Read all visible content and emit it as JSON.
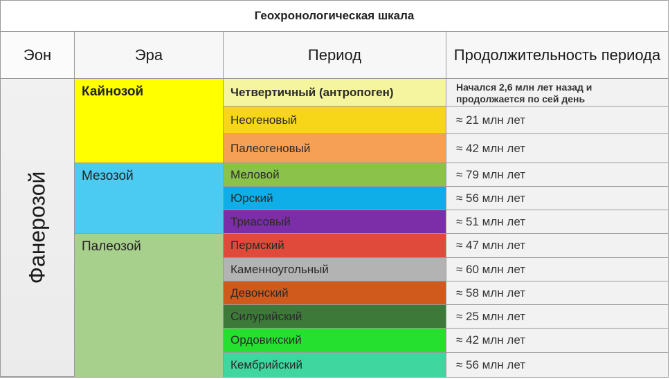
{
  "title": "Геохронологическая шкала",
  "headers": {
    "eon": "Эон",
    "era": "Эра",
    "period": "Период",
    "duration": "Продолжительность периода"
  },
  "eon": "Фанерозой",
  "eras": [
    {
      "name": "Кайнозой",
      "color": "#ffff00"
    },
    {
      "name": "Мезозой",
      "color": "#4ccbf2"
    },
    {
      "name": "Палеозой",
      "color": "#a8d08d"
    }
  ],
  "periods": [
    {
      "name": "Четвертичный (антропоген)",
      "duration": "Начался 2,6 млн лет назад и продолжается по сей день",
      "color": "#f5f5a0"
    },
    {
      "name": "Неогеновый",
      "duration": "≈ 21 млн лет",
      "color": "#f7d61a"
    },
    {
      "name": "Палеогеновый",
      "duration": "≈ 42 млн лет",
      "color": "#f5a055"
    },
    {
      "name": "Меловой",
      "duration": "≈ 79 млн лет",
      "color": "#8bc34a"
    },
    {
      "name": "Юрский",
      "duration": "≈ 56 млн лет",
      "color": "#10aee8"
    },
    {
      "name": "Триасовый",
      "duration": "≈ 51 млн лет",
      "color": "#7b2ea8"
    },
    {
      "name": "Пермский",
      "duration": "≈ 47 млн лет",
      "color": "#e04a3a"
    },
    {
      "name": "Каменноугольный",
      "duration": "≈ 60 млн лет",
      "color": "#b3b3b3"
    },
    {
      "name": "Девонский",
      "duration": "≈ 58 млн лет",
      "color": "#cf5a1c"
    },
    {
      "name": "Силурийский",
      "duration": "≈ 25 млн лет",
      "color": "#3d7a3a"
    },
    {
      "name": "Ордовикский",
      "duration": "≈ 42 млн лет",
      "color": "#26e02f"
    },
    {
      "name": "Кембрийский",
      "duration": "≈ 56 млн лет",
      "color": "#3fd6a0"
    }
  ]
}
